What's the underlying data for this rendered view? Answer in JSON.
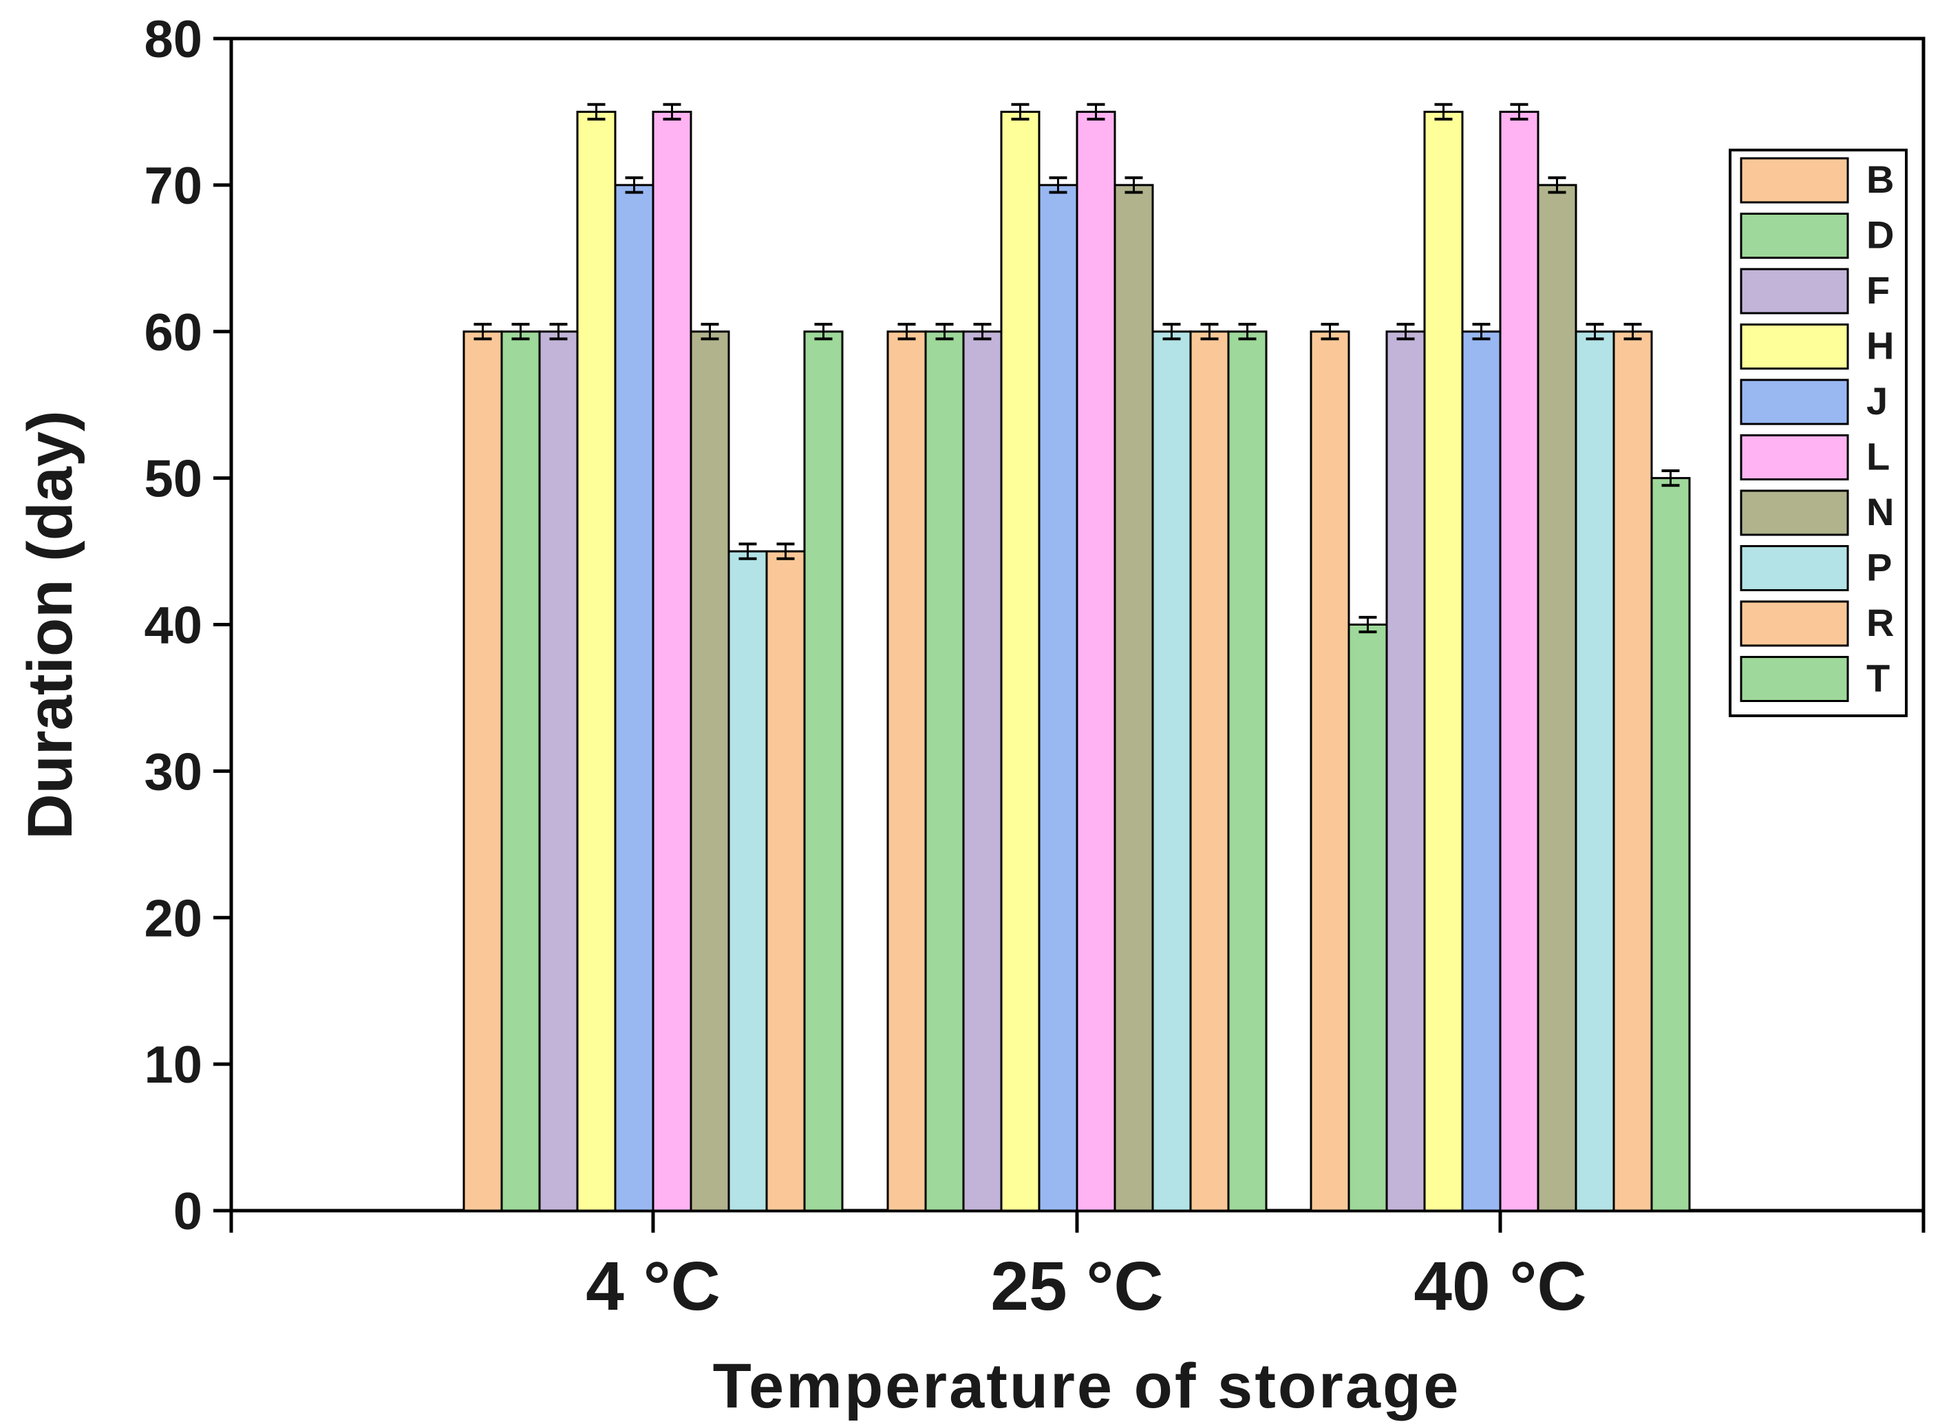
{
  "chart_data": {
    "type": "bar",
    "xlabel": "Temperature of storage",
    "ylabel": "Duration (day)",
    "ylim": [
      0,
      80
    ],
    "yticks": [
      "0",
      "10",
      "20",
      "30",
      "40",
      "50",
      "60",
      "70",
      "80"
    ],
    "categories": [
      "4 °C",
      "25 °C",
      "40 °C"
    ],
    "legend_position": "right",
    "grid": false,
    "error_bar": 0.5,
    "series": [
      {
        "name": "B",
        "color": "#FAC898",
        "values": [
          60,
          60,
          60
        ]
      },
      {
        "name": "D",
        "color": "#9ED89A",
        "values": [
          60,
          60,
          40
        ]
      },
      {
        "name": "F",
        "color": "#C2B4D8",
        "values": [
          60,
          60,
          60
        ]
      },
      {
        "name": "H",
        "color": "#FFFF99",
        "values": [
          75,
          75,
          75
        ]
      },
      {
        "name": "J",
        "color": "#99B8F2",
        "values": [
          70,
          70,
          60
        ]
      },
      {
        "name": "L",
        "color": "#FFB3F2",
        "values": [
          75,
          75,
          75
        ]
      },
      {
        "name": "N",
        "color": "#B0B38C",
        "values": [
          60,
          70,
          70
        ]
      },
      {
        "name": "P",
        "color": "#B3E3E6",
        "values": [
          45,
          60,
          60
        ]
      },
      {
        "name": "R",
        "color": "#FAC898",
        "values": [
          45,
          60,
          60
        ]
      },
      {
        "name": "T",
        "color": "#9ED89A",
        "values": [
          60,
          60,
          50
        ]
      }
    ]
  }
}
